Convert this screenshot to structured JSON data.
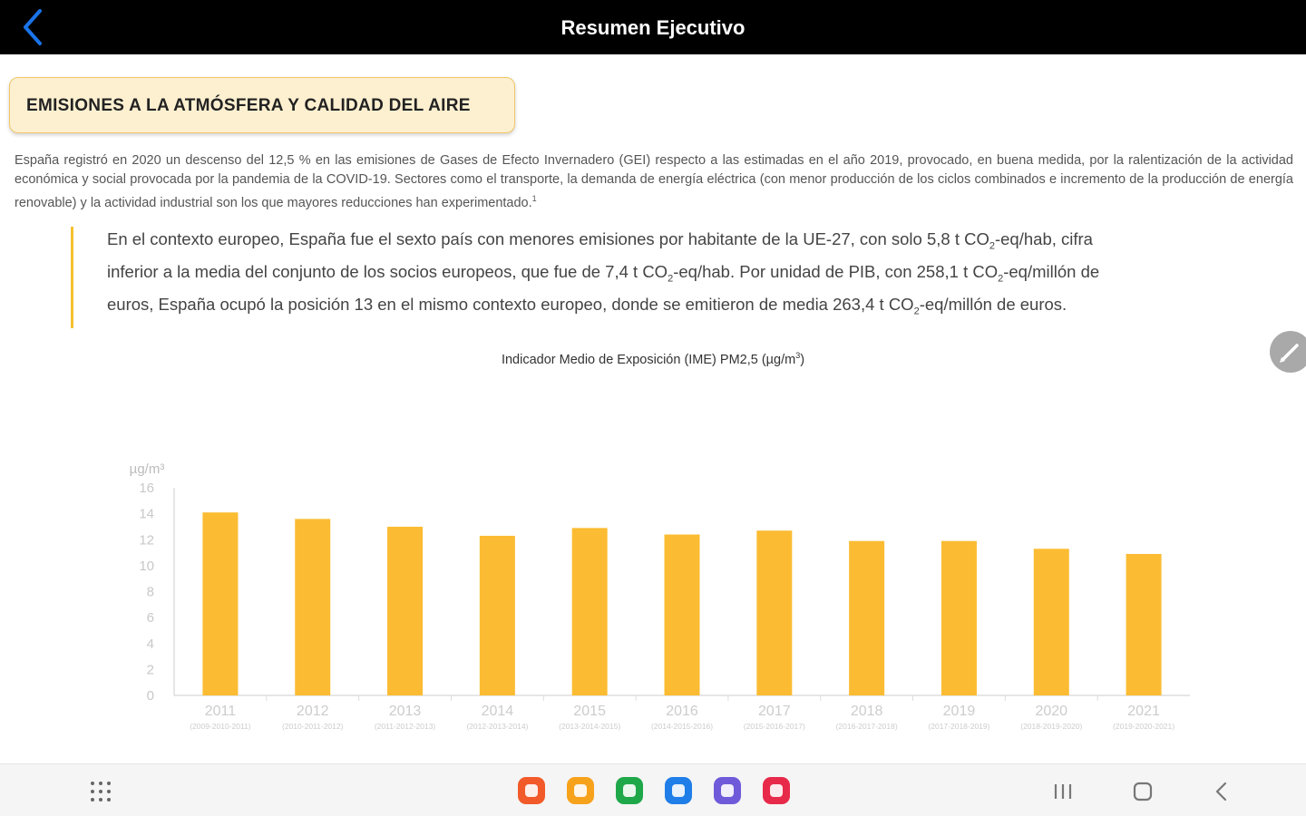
{
  "header": {
    "title": "Resumen Ejecutivo"
  },
  "section": {
    "title": "EMISIONES A LA ATMÓSFERA Y CALIDAD DEL AIRE",
    "intro": "España registró en 2020 un descenso del 12,5 % en las emisiones de Gases de Efecto Invernadero (GEI) respecto a las estimadas en el año 2019, provocado, en buena medida, por la ralentización de la actividad económica y social provocada por la pandemia de la COVID-19. Sectores como el transporte, la demanda de energía eléctrica (con menor producción de los ciclos combinados e incremento de la producción de energía renovable) y la actividad industrial son los que mayores reducciones han experimentado.",
    "intro_footnote": "1",
    "highlight": {
      "p1": "En el contexto europeo, España fue el sexto país con menores emisiones por habitante de la UE-27, con solo 5,8 t CO",
      "p2": "-eq/hab, cifra inferior a la media del conjunto de los socios europeos, que fue de 7,4 t CO",
      "p3": "-eq/hab. Por unidad de PIB, con 258,1 t CO",
      "p4": "-eq/millón de euros, España ocupó la posición 13 en el mismo contexto europeo, donde se emitieron de media 263,4 t CO",
      "p5": "-eq/millón de euros.",
      "sub": "2"
    }
  },
  "chart_title": {
    "text": "Indicador Medio de Exposición (IME) PM2,5 (µg/m",
    "sup": "3",
    "close": ")"
  },
  "chart_data": {
    "type": "bar",
    "categories": [
      "2011",
      "2012",
      "2013",
      "2014",
      "2015",
      "2016",
      "2017",
      "2018",
      "2019",
      "2020",
      "2021"
    ],
    "sublabels": [
      "(2009-2010-2011)",
      "(2010-2011-2012)",
      "(2011-2012-2013)",
      "(2012-2013-2014)",
      "(2013-2014-2015)",
      "(2014-2015-2016)",
      "(2015-2016-2017)",
      "(2016-2017-2018)",
      "(2017-2018-2019)",
      "(2018-2019-2020)",
      "(2019-2020-2021)"
    ],
    "values": [
      14.1,
      13.6,
      13.0,
      12.3,
      12.9,
      12.4,
      12.7,
      11.9,
      11.9,
      11.3,
      10.9
    ],
    "ylabel": "µg/m³",
    "yticks": [
      "0",
      "2",
      "4",
      "6",
      "8",
      "10",
      "12",
      "14",
      "16"
    ],
    "ylim": [
      0,
      16
    ],
    "color": "#fbbc33",
    "grid": false
  },
  "taskbar": {
    "apps": [
      {
        "name": "app-red-orange",
        "color": "#f25a2a"
      },
      {
        "name": "app-orange",
        "color": "#f7a21b"
      },
      {
        "name": "app-green",
        "color": "#1fa84a"
      },
      {
        "name": "app-blue",
        "color": "#1f7ee8"
      },
      {
        "name": "app-purple",
        "color": "#6f5ad9"
      },
      {
        "name": "app-pink",
        "color": "#e82a4a"
      }
    ]
  }
}
